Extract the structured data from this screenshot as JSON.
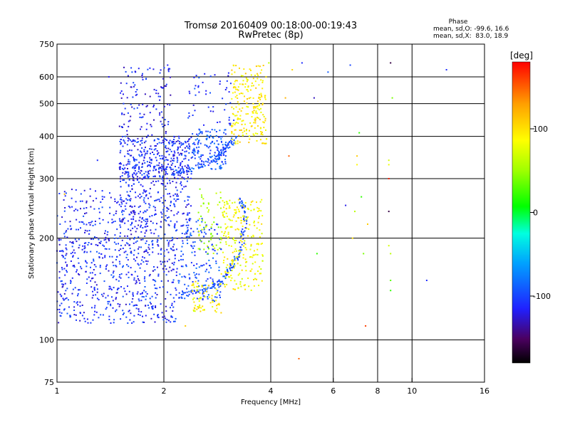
{
  "chart_data": {
    "type": "scatter",
    "title": "Tromsø 20160409 00:18:00-00:19:43",
    "subtitle": "RwPretec (8p)",
    "xlabel": "Frequency [MHz]",
    "ylabel": "Stationary phase Virtual Height [km]",
    "xscale": "log",
    "yscale": "log",
    "xlim": [
      1,
      16
    ],
    "ylim": [
      75,
      750
    ],
    "x_ticks": [
      "1",
      "2",
      "4",
      "6",
      "8",
      "10",
      "16"
    ],
    "y_ticks": [
      "75",
      "100",
      "200",
      "300",
      "400",
      "500",
      "600",
      "750"
    ],
    "x_ticks_values": [
      1,
      2,
      4,
      6,
      8,
      10,
      16
    ],
    "y_ticks_values": [
      75,
      100,
      200,
      300,
      400,
      500,
      600,
      750
    ],
    "grid": true,
    "stats": {
      "heading": "Phase",
      "line1": "mean, sd,O: -99.6, 16.6",
      "line2": "mean, sd,X:  83.0, 18.9"
    },
    "colorbar": {
      "label": "[deg]",
      "range": [
        -180,
        180
      ],
      "ticks": [
        "100",
        "0",
        "-100"
      ],
      "tick_values": [
        100,
        0,
        -100
      ]
    },
    "series": [
      {
        "mode": "O",
        "phase_mean": -99.6,
        "clusters": [
          {
            "x": [
              1.0,
              2.2
            ],
            "y": [
              112,
              200
            ],
            "n": 550,
            "phase": -110
          },
          {
            "x": [
              1.0,
              1.8
            ],
            "y": [
              190,
              280
            ],
            "n": 180,
            "phase": -112
          },
          {
            "x": [
              1.5,
              2.4
            ],
            "y": [
              200,
              330
            ],
            "n": 300,
            "phase": -112
          },
          {
            "x": [
              1.5,
              2.4
            ],
            "y": [
              300,
              400
            ],
            "n": 330,
            "phase": -110
          },
          {
            "x": [
              1.5,
              2.1
            ],
            "y": [
              400,
              640
            ],
            "n": 120,
            "phase": -115
          },
          {
            "x": [
              2.2,
              2.9
            ],
            "y": [
              130,
              230
            ],
            "n": 160,
            "phase": -95
          },
          {
            "x": [
              2.4,
              3.0
            ],
            "y": [
              320,
              420
            ],
            "n": 140,
            "phase": -95
          },
          {
            "x": [
              2.3,
              3.2
            ],
            "y": [
              430,
              620
            ],
            "n": 50,
            "phase": -105
          }
        ],
        "trailing_edge": [
          [
            2.2,
            135
          ],
          [
            2.6,
            140
          ],
          [
            2.9,
            148
          ],
          [
            3.1,
            165
          ],
          [
            3.3,
            185
          ],
          [
            3.4,
            230
          ],
          [
            3.3,
            260
          ]
        ],
        "trailing_edge_upper": [
          [
            2.1,
            310
          ],
          [
            2.5,
            325
          ],
          [
            2.8,
            345
          ],
          [
            3.0,
            370
          ],
          [
            3.2,
            400
          ]
        ]
      },
      {
        "mode": "X",
        "phase_mean": 83.0,
        "clusters": [
          {
            "x": [
              2.4,
              2.9
            ],
            "y": [
              120,
              150
            ],
            "n": 70,
            "phase": 88
          },
          {
            "x": [
              2.5,
              2.9
            ],
            "y": [
              180,
              280
            ],
            "n": 60,
            "phase": 55
          },
          {
            "x": [
              2.9,
              3.8
            ],
            "y": [
              140,
              260
            ],
            "n": 240,
            "phase": 85
          },
          {
            "x": [
              3.1,
              3.9
            ],
            "y": [
              380,
              650
            ],
            "n": 220,
            "phase": 95
          }
        ]
      }
    ],
    "scattered_points": [
      {
        "x": 1.05,
        "y": 270,
        "phase": 120
      },
      {
        "x": 2.3,
        "y": 110,
        "phase": 110
      },
      {
        "x": 3.95,
        "y": 660,
        "phase": 60
      },
      {
        "x": 4.6,
        "y": 630,
        "phase": 105
      },
      {
        "x": 4.4,
        "y": 520,
        "phase": 120
      },
      {
        "x": 4.9,
        "y": 660,
        "phase": -110
      },
      {
        "x": 5.3,
        "y": 520,
        "phase": -130
      },
      {
        "x": 5.8,
        "y": 620,
        "phase": -90
      },
      {
        "x": 4.5,
        "y": 350,
        "phase": 150
      },
      {
        "x": 5.4,
        "y": 180,
        "phase": 20
      },
      {
        "x": 4.8,
        "y": 88,
        "phase": 150
      },
      {
        "x": 6.5,
        "y": 250,
        "phase": -120
      },
      {
        "x": 6.7,
        "y": 650,
        "phase": -100
      },
      {
        "x": 6.8,
        "y": 200,
        "phase": 100
      },
      {
        "x": 6.9,
        "y": 240,
        "phase": 60
      },
      {
        "x": 7.0,
        "y": 330,
        "phase": 90
      },
      {
        "x": 7.1,
        "y": 410,
        "phase": 20
      },
      {
        "x": 7.2,
        "y": 265,
        "phase": 20
      },
      {
        "x": 7.3,
        "y": 180,
        "phase": 40
      },
      {
        "x": 7.4,
        "y": 110,
        "phase": 160
      },
      {
        "x": 7.5,
        "y": 220,
        "phase": 110
      },
      {
        "x": 7.0,
        "y": 350,
        "phase": 110
      },
      {
        "x": 8.6,
        "y": 300,
        "phase": 170
      },
      {
        "x": 8.6,
        "y": 330,
        "phase": 80
      },
      {
        "x": 8.6,
        "y": 340,
        "phase": 70
      },
      {
        "x": 8.6,
        "y": 240,
        "phase": -160
      },
      {
        "x": 8.6,
        "y": 190,
        "phase": 70
      },
      {
        "x": 8.7,
        "y": 150,
        "phase": 30
      },
      {
        "x": 8.7,
        "y": 140,
        "phase": 20
      },
      {
        "x": 8.7,
        "y": 180,
        "phase": 60
      },
      {
        "x": 8.8,
        "y": 520,
        "phase": 40
      },
      {
        "x": 8.7,
        "y": 660,
        "phase": -160
      },
      {
        "x": 11.0,
        "y": 150,
        "phase": -110
      },
      {
        "x": 12.5,
        "y": 630,
        "phase": -110
      },
      {
        "x": 1.02,
        "y": 220,
        "phase": -100
      },
      {
        "x": 1.3,
        "y": 340,
        "phase": -110
      },
      {
        "x": 1.4,
        "y": 600,
        "phase": -120
      },
      {
        "x": 2.05,
        "y": 650,
        "phase": -115
      }
    ]
  }
}
